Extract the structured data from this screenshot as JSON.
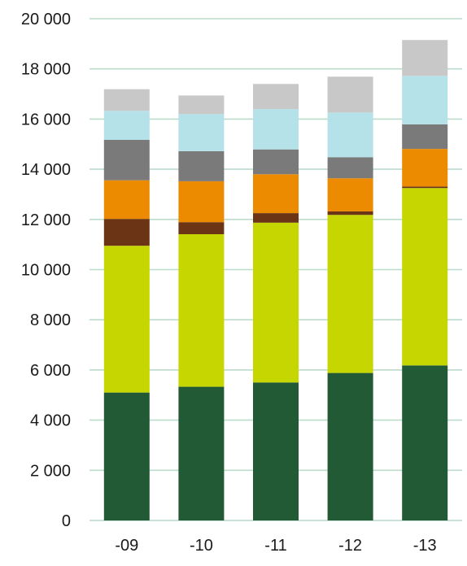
{
  "chart_data": {
    "type": "bar",
    "stacked": true,
    "title": "",
    "xlabel": "",
    "ylabel": "",
    "ylim": [
      0,
      20000
    ],
    "yticks": [
      0,
      2000,
      4000,
      6000,
      8000,
      10000,
      12000,
      14000,
      16000,
      18000,
      20000
    ],
    "ytick_labels": [
      "0",
      "2 000",
      "4 000",
      "6 000",
      "8 000",
      "10 000",
      "12 000",
      "14 000",
      "16 000",
      "18 000",
      "20 000"
    ],
    "grid": true,
    "legend": "none",
    "categories": [
      "-09",
      "-10",
      "-11",
      "-12",
      "-13"
    ],
    "series": [
      {
        "color": "#225a36",
        "values": [
          5100,
          5330,
          5500,
          5880,
          6180
        ]
      },
      {
        "color": "#c5d600",
        "values": [
          5850,
          6080,
          6370,
          6300,
          7070
        ]
      },
      {
        "color": "#6b3515",
        "values": [
          1070,
          480,
          380,
          140,
          60
        ]
      },
      {
        "color": "#ec8a00",
        "values": [
          1540,
          1630,
          1550,
          1320,
          1500
        ]
      },
      {
        "color": "#7a7a7a",
        "values": [
          1610,
          1200,
          990,
          840,
          980
        ]
      },
      {
        "color": "#b5e1e8",
        "values": [
          1160,
          1480,
          1610,
          1780,
          1930
        ]
      },
      {
        "color": "#c8c8c8",
        "values": [
          860,
          740,
          1000,
          1430,
          1430
        ]
      }
    ]
  }
}
